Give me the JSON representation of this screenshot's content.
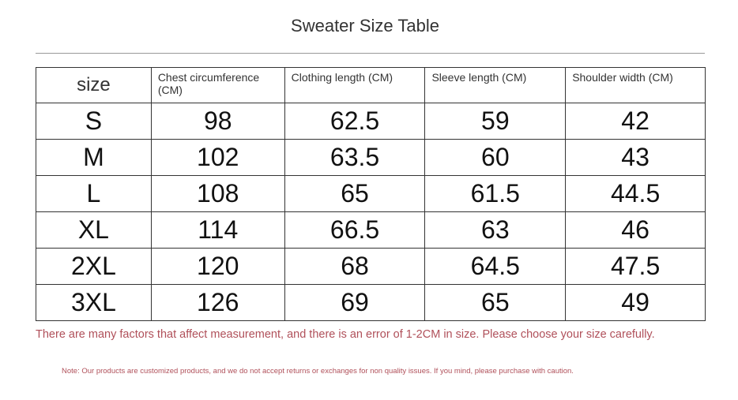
{
  "title": "Sweater Size Table",
  "table": {
    "headers": [
      "size",
      "Chest circumference (CM)",
      "Clothing length (CM)",
      "Sleeve length (CM)",
      "Shoulder width (CM)"
    ],
    "rows": [
      [
        "S",
        "98",
        "62.5",
        "59",
        "42"
      ],
      [
        "M",
        "102",
        "63.5",
        "60",
        "43"
      ],
      [
        "L",
        "108",
        "65",
        "61.5",
        "44.5"
      ],
      [
        "XL",
        "114",
        "66.5",
        "63",
        "46"
      ],
      [
        "2XL",
        "120",
        "68",
        "64.5",
        "47.5"
      ],
      [
        "3XL",
        "126",
        "69",
        "65",
        "49"
      ]
    ]
  },
  "warning": "There are many factors that affect measurement, and there is an error of 1-2CM in size. Please choose your size carefully.",
  "note": "Note: Our products are customized products, and we do not accept returns or exchanges for non quality issues. If you mind, please purchase with caution.",
  "colors": {
    "warning_text": "#b0505a"
  }
}
